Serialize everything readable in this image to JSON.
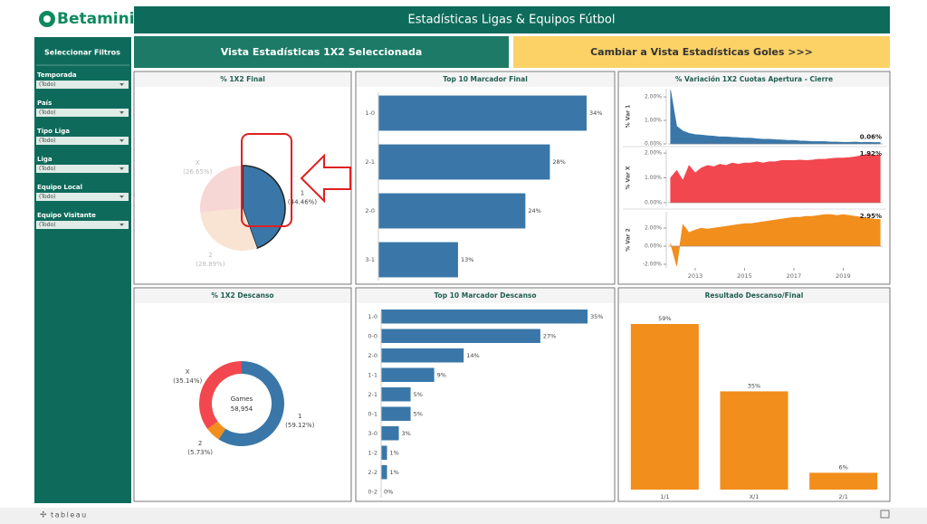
{
  "header": {
    "logo": "Betaminic",
    "title": "Estadísticas Ligas & Equipos Fútbol"
  },
  "tabs": [
    "Vista Estadísticas 1X2 Seleccionada",
    "Cambiar a Vista Estadísticas Goles >>>"
  ],
  "filters": {
    "title": "Seleccionar Filtros",
    "items": [
      {
        "label": "Temporada",
        "value": "(Todo)"
      },
      {
        "label": "País",
        "value": "(Todo)"
      },
      {
        "label": "Tipo Liga",
        "value": "(Todo)"
      },
      {
        "label": "Liga",
        "value": "(Todo)"
      },
      {
        "label": "Equipo Local",
        "value": "(Todo)"
      },
      {
        "label": "Equipo Visitante",
        "value": "(Todo)"
      }
    ]
  },
  "footer": "tableau",
  "chart_data": [
    {
      "type": "pie",
      "title": "% 1X2 Final",
      "categories": [
        "1",
        "2",
        "X"
      ],
      "values": [
        44.46,
        28.89,
        26.65
      ],
      "value_labels": [
        "(44.46%)",
        "(28.89%)",
        "(26.65%)"
      ],
      "colors": [
        "#3a77a8",
        "#f9e3d2",
        "#f7d6d6"
      ]
    },
    {
      "type": "hbar",
      "title": "Top 10 Marcador Final",
      "categories": [
        "1-0",
        "2-1",
        "2-0",
        "3-1"
      ],
      "values": [
        34,
        28,
        24,
        13
      ],
      "value_labels": [
        "34%",
        "28%",
        "24%",
        "13%"
      ],
      "color": "#3a77a8"
    },
    {
      "type": "area",
      "title": "% Variación 1X2 Cuotas Apertura - Cierre",
      "x": [
        2012,
        2012.25,
        2012.5,
        2012.75,
        2013,
        2013.25,
        2013.5,
        2013.75,
        2014,
        2014.25,
        2014.5,
        2014.75,
        2015,
        2015.25,
        2015.5,
        2015.75,
        2016,
        2016.25,
        2016.5,
        2016.75,
        2017,
        2017.25,
        2017.5,
        2017.75,
        2018,
        2018.25,
        2018.5,
        2018.75,
        2019,
        2019.25,
        2019.5,
        2019.75,
        2020,
        2020.25,
        2020.5
      ],
      "xlim": [
        2011.9,
        2020.6
      ],
      "xticks": [
        2013,
        2015,
        2017,
        2019
      ],
      "series": [
        {
          "name": "% Var 1",
          "color": "#3a77a8",
          "ylim": [
            0,
            2.35
          ],
          "yticks": [
            {
              "value": 0,
              "label": "0.00%"
            },
            {
              "value": 1,
              "label": "1.00%"
            },
            {
              "value": 2,
              "label": "2.00%"
            }
          ],
          "values": [
            2.3,
            0.75,
            0.55,
            0.45,
            0.4,
            0.38,
            0.35,
            0.33,
            0.3,
            0.3,
            0.28,
            0.27,
            0.25,
            0.25,
            0.22,
            0.2,
            0.2,
            0.18,
            0.17,
            0.15,
            0.15,
            0.13,
            0.12,
            0.1,
            0.1,
            0.1,
            0.08,
            0.08,
            0.07,
            0.07,
            0.08,
            0.06,
            0.07,
            0.06,
            0.06
          ],
          "last_label": "0.06%"
        },
        {
          "name": "% Var X",
          "color": "#f2474e",
          "ylim": [
            -0.15,
            2.15
          ],
          "yticks": [
            {
              "value": 0,
              "label": "0.00%"
            },
            {
              "value": 1,
              "label": "1.00%"
            },
            {
              "value": 2,
              "label": "2.00%"
            }
          ],
          "values": [
            1.0,
            1.3,
            0.9,
            1.5,
            1.2,
            1.4,
            1.5,
            1.45,
            1.55,
            1.5,
            1.6,
            1.55,
            1.6,
            1.6,
            1.65,
            1.6,
            1.65,
            1.65,
            1.7,
            1.7,
            1.7,
            1.72,
            1.7,
            1.72,
            1.75,
            1.75,
            1.78,
            1.8,
            1.8,
            1.82,
            1.85,
            1.9,
            1.95,
            1.92,
            1.92
          ],
          "last_label": "1.92%"
        },
        {
          "name": "% Var 2",
          "color": "#f28e1c",
          "ylim": [
            -2.4,
            3.8
          ],
          "yticks": [
            {
              "value": -2,
              "label": "-2.00%"
            },
            {
              "value": 0,
              "label": "0.00%"
            },
            {
              "value": 2,
              "label": "2.00%"
            }
          ],
          "values": [
            0.3,
            -2.2,
            2.4,
            1.5,
            1.8,
            2.0,
            1.9,
            2.0,
            2.1,
            2.2,
            2.3,
            2.4,
            2.5,
            2.5,
            2.6,
            2.7,
            2.8,
            2.9,
            3.0,
            3.1,
            3.2,
            3.2,
            3.3,
            3.3,
            3.4,
            3.5,
            3.5,
            3.4,
            3.5,
            3.4,
            3.3,
            3.2,
            3.1,
            3.0,
            2.95
          ],
          "last_label": "2.95%"
        }
      ]
    },
    {
      "type": "donut",
      "title": "% 1X2 Descanso",
      "categories": [
        "1",
        "2",
        "X"
      ],
      "values": [
        59.12,
        5.73,
        35.14
      ],
      "value_labels": [
        "(59.12%)",
        "(5.73%)",
        "(35.14%)"
      ],
      "colors": [
        "#3a77a8",
        "#f28e1c",
        "#f2474e"
      ],
      "center_title": "Games",
      "center_value": "58,954"
    },
    {
      "type": "hbar",
      "title": "Top 10 Marcador Descanso",
      "categories": [
        "1-0",
        "0-0",
        "2-0",
        "1-1",
        "2-1",
        "0-1",
        "3-0",
        "1-2",
        "2-2",
        "0-2"
      ],
      "values": [
        35,
        27,
        14,
        9,
        5,
        5,
        3,
        1,
        1,
        0
      ],
      "value_labels": [
        "35%",
        "27%",
        "14%",
        "9%",
        "5%",
        "5%",
        "3%",
        "1%",
        "1%",
        "0%"
      ],
      "color": "#3a77a8"
    },
    {
      "type": "vbar",
      "title": "Resultado Descanso/Final",
      "categories": [
        "1/1",
        "X/1",
        "2/1"
      ],
      "values": [
        59,
        35,
        6
      ],
      "value_labels": [
        "59%",
        "35%",
        "6%"
      ],
      "color": "#f28e1c"
    }
  ]
}
